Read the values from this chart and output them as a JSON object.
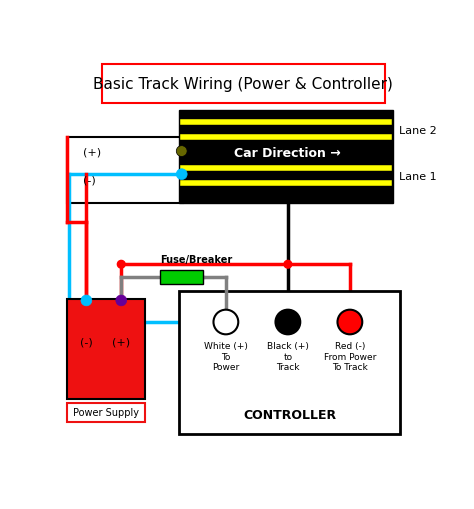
{
  "title": "Basic Track Wiring (Power & Controller)",
  "bg_color": "#ffffff",
  "title_box_color": "#ff0000",
  "track_bg": "#000000",
  "track_rail_color": "#ffff00",
  "lane1_label": "Lane 1",
  "lane2_label": "Lane 2",
  "car_direction_text": "Car Direction →",
  "controller_label": "CONTROLLER",
  "power_supply_label": "Power Supply",
  "fuse_label": "Fuse/Breaker",
  "white_label": "White (+)\nTo\nPower",
  "black_label": "Black (+)\nto\nTrack",
  "red_label": "Red (-)\nFrom Power\nTo Track",
  "plus_label": "(+)",
  "minus_label": "(-)",
  "ps_plus_label": "(+)",
  "ps_minus_label": "(-)"
}
